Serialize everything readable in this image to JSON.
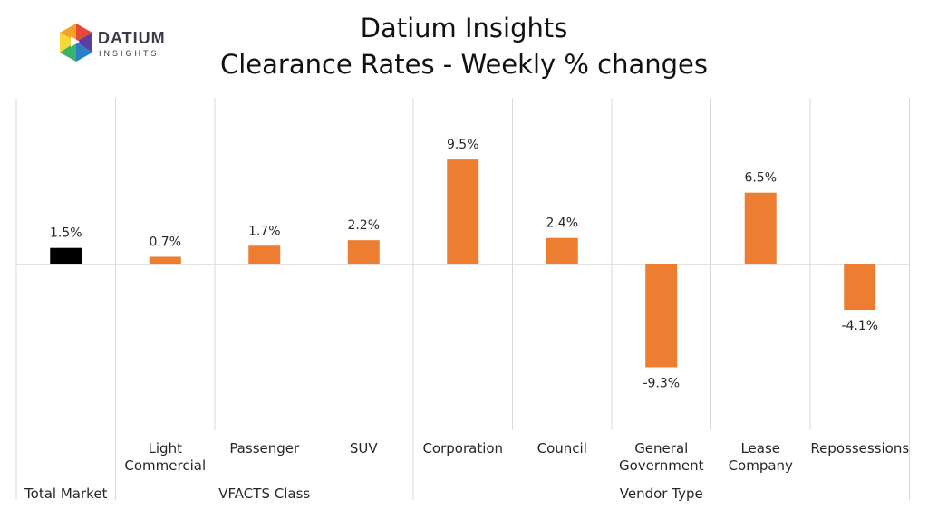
{
  "logo": {
    "name": "DATIUM",
    "tagline": "INSIGHTS",
    "colors": [
      "#e8473a",
      "#f4a12a",
      "#f6d83a",
      "#3ab26b",
      "#2a7fc7",
      "#5b3f9a"
    ]
  },
  "header": {
    "title": "Datium Insights",
    "subtitle": "Clearance Rates - Weekly % changes"
  },
  "colors": {
    "total": "#000000",
    "segment": "#ed7d31",
    "grid": "#d9d9d9"
  },
  "chart_data": {
    "type": "bar",
    "categories": [
      "Total Market",
      "Light Commercial",
      "Passenger",
      "SUV",
      "Corporation",
      "Council",
      "General Government",
      "Lease Company",
      "Repossessions"
    ],
    "category_lines": [
      [
        "Total Market"
      ],
      [
        "Light",
        "Commercial"
      ],
      [
        "Passenger"
      ],
      [
        "SUV"
      ],
      [
        "Corporation"
      ],
      [
        "Council"
      ],
      [
        "General",
        "Government"
      ],
      [
        "Lease",
        "Company"
      ],
      [
        "Repossessions"
      ]
    ],
    "values": [
      1.5,
      0.7,
      1.7,
      2.2,
      9.5,
      2.4,
      -9.3,
      6.5,
      -4.1
    ],
    "data_labels": [
      "1.5%",
      "0.7%",
      "1.7%",
      "2.2%",
      "9.5%",
      "2.4%",
      "-9.3%",
      "6.5%",
      "-4.1%"
    ],
    "groups": [
      {
        "label": "",
        "start": 0,
        "end": 0
      },
      {
        "label": "VFACTS Class",
        "start": 1,
        "end": 3
      },
      {
        "label": "Vendor Type",
        "start": 4,
        "end": 8
      }
    ],
    "ylim": [
      -15,
      15
    ],
    "grid": false,
    "legend": "none"
  }
}
